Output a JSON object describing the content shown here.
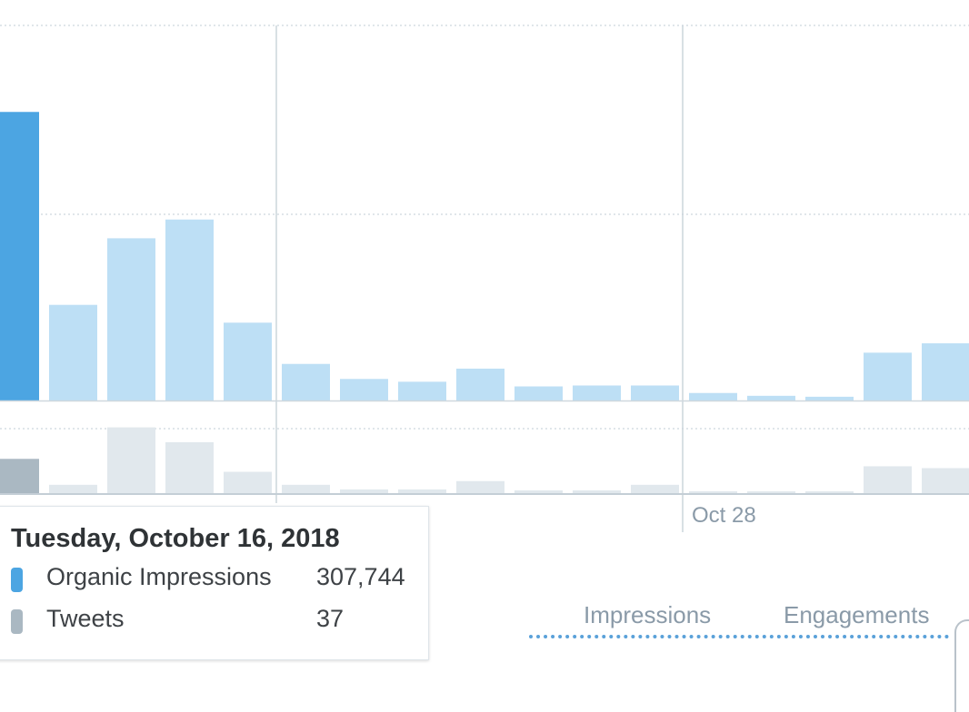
{
  "chart_data": {
    "type": "bar",
    "series": [
      {
        "name": "Organic Impressions",
        "color": "#4ca5e2",
        "faded_color": "#bddff5",
        "values": [
          307744,
          102000,
          173000,
          193000,
          83000,
          39000,
          23000,
          20000,
          34000,
          15000,
          16000,
          16000,
          8000,
          5000,
          4000,
          51000,
          61000
        ]
      },
      {
        "name": "Tweets",
        "color": "#aab8c2",
        "faded_color": "#e1e8ed",
        "values": [
          37,
          9,
          71,
          55,
          23,
          9,
          4,
          4,
          13,
          3,
          3,
          9,
          2,
          1,
          1,
          29,
          27
        ]
      }
    ],
    "highlight_index": 0,
    "impressions_ylim": [
      0,
      400000
    ],
    "tweets_ylim": [
      0,
      100
    ],
    "x_labels": [
      {
        "index": 11.5,
        "text": "Oct 28"
      }
    ],
    "grid": true
  },
  "tooltip": {
    "title": "Tuesday, October 16, 2018",
    "rows": [
      {
        "label": "Organic Impressions",
        "value": "307,744",
        "color": "#4ca5e2"
      },
      {
        "label": "Tweets",
        "value": "37",
        "color": "#aab8c2"
      }
    ]
  },
  "tabs": [
    {
      "label": "Impressions"
    },
    {
      "label": "Engagements"
    }
  ]
}
